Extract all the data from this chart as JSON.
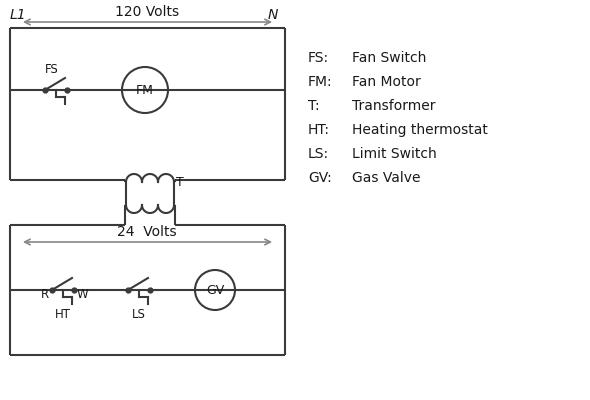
{
  "bg_color": "#ffffff",
  "line_color": "#3a3a3a",
  "arrow_color": "#888888",
  "text_color": "#1a1a1a",
  "legend_items": [
    [
      "FS:",
      "Fan Switch"
    ],
    [
      "FM:",
      "Fan Motor"
    ],
    [
      "T:",
      "Transformer"
    ],
    [
      "HT:",
      "Heating thermostat"
    ],
    [
      "LS:",
      "Limit Switch"
    ],
    [
      "GV:",
      "Gas Valve"
    ]
  ],
  "volts120_label": "120 Volts",
  "volts24_label": "24  Volts",
  "L1_label": "L1",
  "N_label": "N"
}
